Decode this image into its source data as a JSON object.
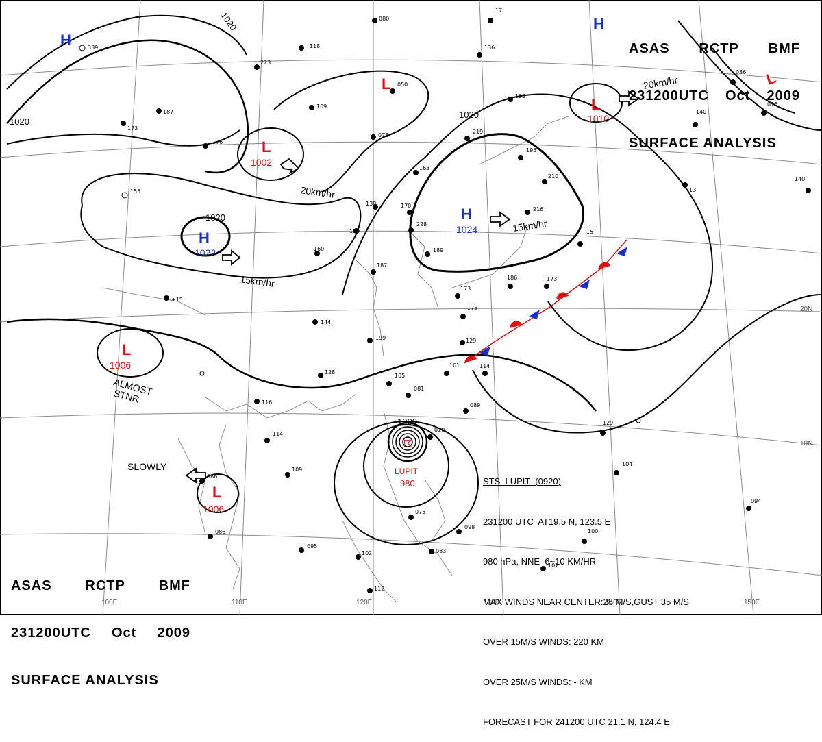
{
  "title": {
    "agency": [
      "ASAS",
      "RCTP",
      "BMF"
    ],
    "time": [
      "231200UTC",
      "Oct",
      "2009"
    ],
    "product": "SURFACE ANALYSIS"
  },
  "lat_labels": [
    "20N",
    "10N"
  ],
  "lon_labels": [
    "100E",
    "110E",
    "120E",
    "130E",
    "140E",
    "150E"
  ],
  "isobars": [
    "1020",
    "1020",
    "1020",
    "1020",
    "1000"
  ],
  "pressure_systems": [
    {
      "type": "H",
      "value": "",
      "color": "#1a2fd0"
    },
    {
      "type": "L",
      "value": "1002",
      "color": "#e01010"
    },
    {
      "type": "L",
      "value": "",
      "color": "#e01010"
    },
    {
      "type": "H",
      "value": "1022",
      "color": "#1a2fd0"
    },
    {
      "type": "H",
      "value": "1024",
      "color": "#1a2fd0"
    },
    {
      "type": "L",
      "value": "1010",
      "color": "#e01010"
    },
    {
      "type": "H",
      "value": "",
      "color": "#1a2fd0"
    },
    {
      "type": "L",
      "value": "",
      "color": "#e01010"
    },
    {
      "type": "L",
      "value": "1006",
      "color": "#e01010"
    },
    {
      "type": "L",
      "value": "1006",
      "color": "#e01010"
    }
  ],
  "motions": [
    "20km/hr",
    "15km/hr",
    "15km/hr",
    "20km/hr",
    "SLOWLY"
  ],
  "remarks": [
    "ALMOST",
    "STNR"
  ],
  "typhoon": {
    "name": "LUPIT",
    "pressure": "980",
    "info_lines": [
      "STS  LUPIT  (0920)",
      "231200 UTC  AT19.5 N, 123.5 E",
      "980 hPa, NNE  6~10 KM/HR",
      "MAX WINDS NEAR CENTER:28 M/S,GUST 35 M/S",
      "OVER 15M/S WINDS: 220 KM",
      "OVER 25M/S WINDS: - KM",
      "FORECAST FOR 241200 UTC 21.1 N, 124.4 E"
    ]
  },
  "colors": {
    "high": "#1a2fd0",
    "low": "#e01010",
    "front_warm": "#e01010",
    "front_cold": "#1a2fd0",
    "lines": "#000000"
  }
}
